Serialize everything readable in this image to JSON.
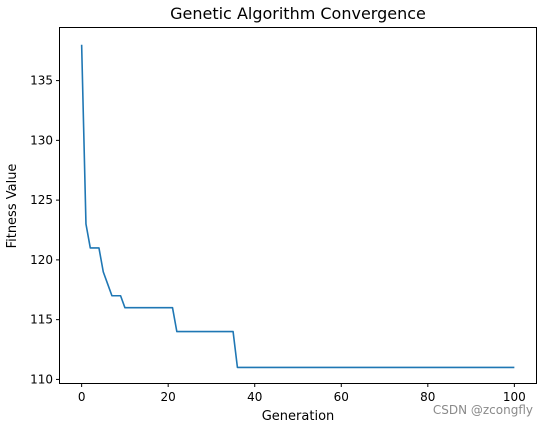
{
  "chart_data": {
    "type": "line",
    "title": "Genetic Algorithm Convergence",
    "xlabel": "Generation",
    "ylabel": "Fitness Value",
    "xlim": [
      -5,
      105
    ],
    "ylim": [
      109.7,
      139.4
    ],
    "xticks": [
      0,
      20,
      40,
      60,
      80,
      100
    ],
    "yticks": [
      110,
      115,
      120,
      125,
      130,
      135
    ],
    "grid": false,
    "line_color": "#1f77b4",
    "series": [
      {
        "x": [
          0,
          1,
          2,
          3,
          4,
          5,
          6,
          7,
          8,
          9,
          10,
          11,
          12,
          13,
          14,
          15,
          16,
          17,
          18,
          19,
          20,
          21,
          22,
          23,
          24,
          25,
          26,
          27,
          28,
          29,
          30,
          31,
          32,
          33,
          34,
          35,
          36,
          37,
          38,
          39,
          40,
          41,
          42,
          43,
          44,
          45,
          46,
          47,
          48,
          49,
          50,
          51,
          52,
          53,
          54,
          55,
          56,
          57,
          58,
          59,
          60,
          61,
          62,
          63,
          64,
          65,
          66,
          67,
          68,
          69,
          70,
          71,
          72,
          73,
          74,
          75,
          76,
          77,
          78,
          79,
          80,
          81,
          82,
          83,
          84,
          85,
          86,
          87,
          88,
          89,
          90,
          91,
          92,
          93,
          94,
          95,
          96,
          97,
          98,
          99,
          100
        ],
        "values": [
          138,
          123,
          121,
          121,
          121,
          119,
          118,
          117,
          117,
          117,
          116,
          116,
          116,
          116,
          116,
          116,
          116,
          116,
          116,
          116,
          116,
          116,
          114,
          114,
          114,
          114,
          114,
          114,
          114,
          114,
          114,
          114,
          114,
          114,
          114,
          114,
          111,
          111,
          111,
          111,
          111,
          111,
          111,
          111,
          111,
          111,
          111,
          111,
          111,
          111,
          111,
          111,
          111,
          111,
          111,
          111,
          111,
          111,
          111,
          111,
          111,
          111,
          111,
          111,
          111,
          111,
          111,
          111,
          111,
          111,
          111,
          111,
          111,
          111,
          111,
          111,
          111,
          111,
          111,
          111,
          111,
          111,
          111,
          111,
          111,
          111,
          111,
          111,
          111,
          111,
          111,
          111,
          111,
          111,
          111,
          111,
          111,
          111,
          111,
          111,
          111
        ]
      }
    ]
  },
  "watermark": "CSDN @zcongfly"
}
